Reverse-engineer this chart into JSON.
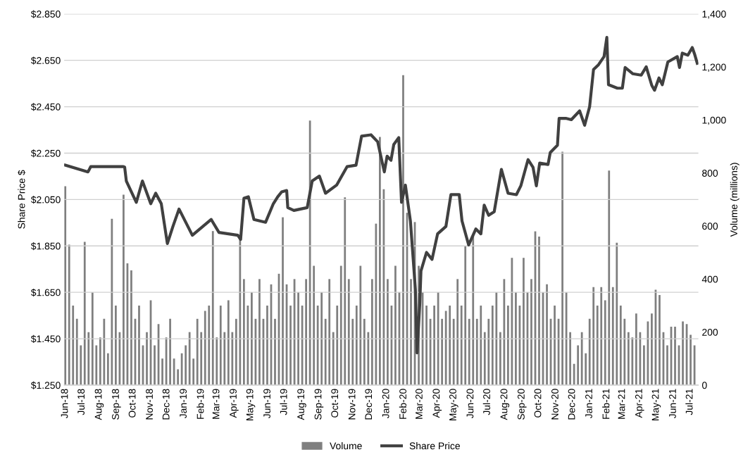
{
  "chart_data": {
    "type": "bar",
    "ylabel": "Share Price $",
    "y2label": "Volume (millions)",
    "xlim": [
      "2018-05-30",
      "2021-07-16"
    ],
    "xticks": [
      {
        "value": "2018-06-01",
        "label": "Jun-18"
      },
      {
        "value": "2018-07-01",
        "label": "Jul-18"
      },
      {
        "value": "2018-08-01",
        "label": "Aug-18"
      },
      {
        "value": "2018-09-01",
        "label": "Sep-18"
      },
      {
        "value": "2018-10-01",
        "label": "Oct-18"
      },
      {
        "value": "2018-11-01",
        "label": "Nov-18"
      },
      {
        "value": "2018-12-01",
        "label": "Dec-18"
      },
      {
        "value": "2019-01-01",
        "label": "Jan-19"
      },
      {
        "value": "2019-02-01",
        "label": "Feb-19"
      },
      {
        "value": "2019-03-01",
        "label": "Mar-19"
      },
      {
        "value": "2019-04-01",
        "label": "Apr-19"
      },
      {
        "value": "2019-05-01",
        "label": "May-19"
      },
      {
        "value": "2019-06-01",
        "label": "Jun-19"
      },
      {
        "value": "2019-07-01",
        "label": "Jul-19"
      },
      {
        "value": "2019-08-01",
        "label": "Aug-19"
      },
      {
        "value": "2019-09-01",
        "label": "Sep-19"
      },
      {
        "value": "2019-10-01",
        "label": "Oct-19"
      },
      {
        "value": "2019-11-01",
        "label": "Nov-19"
      },
      {
        "value": "2019-12-01",
        "label": "Dec-19"
      },
      {
        "value": "2020-01-01",
        "label": "Jan-20"
      },
      {
        "value": "2020-02-01",
        "label": "Feb-20"
      },
      {
        "value": "2020-03-01",
        "label": "Mar-20"
      },
      {
        "value": "2020-04-01",
        "label": "Apr-20"
      },
      {
        "value": "2020-05-01",
        "label": "May-20"
      },
      {
        "value": "2020-06-01",
        "label": "Jun-20"
      },
      {
        "value": "2020-07-01",
        "label": "Jul-20"
      },
      {
        "value": "2020-08-01",
        "label": "Aug-20"
      },
      {
        "value": "2020-09-01",
        "label": "Sep-20"
      },
      {
        "value": "2020-10-01",
        "label": "Oct-20"
      },
      {
        "value": "2020-11-01",
        "label": "Nov-20"
      },
      {
        "value": "2020-12-01",
        "label": "Dec-20"
      },
      {
        "value": "2021-01-01",
        "label": "Jan-21"
      },
      {
        "value": "2021-02-01",
        "label": "Feb-21"
      },
      {
        "value": "2021-03-01",
        "label": "Mar-21"
      },
      {
        "value": "2021-04-01",
        "label": "Apr-21"
      },
      {
        "value": "2021-05-01",
        "label": "May-21"
      },
      {
        "value": "2021-06-01",
        "label": "Jun-21"
      },
      {
        "value": "2021-07-01",
        "label": "Jul-21"
      }
    ],
    "ylim": [
      1.25,
      2.85
    ],
    "yticks": [
      {
        "value": 1.25,
        "label": "$1.250"
      },
      {
        "value": 1.45,
        "label": "$1.450"
      },
      {
        "value": 1.65,
        "label": "$1.650"
      },
      {
        "value": 1.85,
        "label": "$1.850"
      },
      {
        "value": 2.05,
        "label": "$2.050"
      },
      {
        "value": 2.25,
        "label": "$2.250"
      },
      {
        "value": 2.45,
        "label": "$2.450"
      },
      {
        "value": 2.65,
        "label": "$2.650"
      },
      {
        "value": 2.85,
        "label": "$2.850"
      }
    ],
    "y2lim": [
      0,
      1400
    ],
    "y2ticks": [
      0,
      200,
      400,
      600,
      800,
      {
        "value": 1000,
        "label": "1,000"
      },
      {
        "value": 1200,
        "label": "1,200"
      },
      {
        "value": 1400,
        "label": "1,400"
      }
    ],
    "grid": "y",
    "legend": "bottom",
    "series": [
      {
        "name": "Volume",
        "axis": "y2",
        "color": "#7f7f7f",
        "x": [
          "2018-06-01",
          "2018-06-08",
          "2018-06-15",
          "2018-06-22",
          "2018-06-29",
          "2018-07-06",
          "2018-07-13",
          "2018-07-20",
          "2018-07-27",
          "2018-08-03",
          "2018-08-10",
          "2018-08-17",
          "2018-08-24",
          "2018-08-31",
          "2018-09-07",
          "2018-09-14",
          "2018-09-21",
          "2018-09-28",
          "2018-10-05",
          "2018-10-12",
          "2018-10-19",
          "2018-10-26",
          "2018-11-02",
          "2018-11-09",
          "2018-11-16",
          "2018-11-23",
          "2018-11-30",
          "2018-12-07",
          "2018-12-14",
          "2018-12-21",
          "2018-12-28",
          "2019-01-04",
          "2019-01-11",
          "2019-01-18",
          "2019-01-25",
          "2019-02-01",
          "2019-02-08",
          "2019-02-15",
          "2019-02-22",
          "2019-03-01",
          "2019-03-08",
          "2019-03-15",
          "2019-03-22",
          "2019-03-29",
          "2019-04-05",
          "2019-04-12",
          "2019-04-19",
          "2019-04-26",
          "2019-05-03",
          "2019-05-10",
          "2019-05-17",
          "2019-05-24",
          "2019-05-31",
          "2019-06-07",
          "2019-06-14",
          "2019-06-21",
          "2019-06-28",
          "2019-07-05",
          "2019-07-12",
          "2019-07-19",
          "2019-07-26",
          "2019-08-02",
          "2019-08-09",
          "2019-08-16",
          "2019-08-23",
          "2019-08-30",
          "2019-09-06",
          "2019-09-13",
          "2019-09-20",
          "2019-09-27",
          "2019-10-04",
          "2019-10-11",
          "2019-10-18",
          "2019-10-25",
          "2019-11-01",
          "2019-11-08",
          "2019-11-15",
          "2019-11-22",
          "2019-11-29",
          "2019-12-06",
          "2019-12-13",
          "2019-12-20",
          "2019-12-27",
          "2020-01-03",
          "2020-01-10",
          "2020-01-17",
          "2020-01-24",
          "2020-01-31",
          "2020-02-07",
          "2020-02-14",
          "2020-02-21",
          "2020-02-28",
          "2020-03-06",
          "2020-03-13",
          "2020-03-20",
          "2020-03-27",
          "2020-04-03",
          "2020-04-10",
          "2020-04-17",
          "2020-04-24",
          "2020-05-01",
          "2020-05-08",
          "2020-05-15",
          "2020-05-22",
          "2020-05-29",
          "2020-06-05",
          "2020-06-12",
          "2020-06-19",
          "2020-06-26",
          "2020-07-03",
          "2020-07-10",
          "2020-07-17",
          "2020-07-24",
          "2020-07-31",
          "2020-08-07",
          "2020-08-14",
          "2020-08-21",
          "2020-08-28",
          "2020-09-04",
          "2020-09-11",
          "2020-09-18",
          "2020-09-25",
          "2020-10-02",
          "2020-10-09",
          "2020-10-16",
          "2020-10-23",
          "2020-10-30",
          "2020-11-06",
          "2020-11-13",
          "2020-11-20",
          "2020-11-27",
          "2020-12-04",
          "2020-12-11",
          "2020-12-18",
          "2020-12-25",
          "2021-01-01",
          "2021-01-08",
          "2021-01-15",
          "2021-01-22",
          "2021-01-29",
          "2021-02-05",
          "2021-02-12",
          "2021-02-19",
          "2021-02-26",
          "2021-03-05",
          "2021-03-12",
          "2021-03-19",
          "2021-03-26",
          "2021-04-02",
          "2021-04-09",
          "2021-04-16",
          "2021-04-23",
          "2021-04-30",
          "2021-05-07",
          "2021-05-14",
          "2021-05-21",
          "2021-05-28",
          "2021-06-04",
          "2021-06-11",
          "2021-06-18",
          "2021-06-25",
          "2021-07-02",
          "2021-07-09"
        ],
        "values": [
          750,
          530,
          300,
          250,
          150,
          540,
          200,
          350,
          150,
          180,
          250,
          120,
          627,
          300,
          200,
          718,
          459,
          433,
          250,
          300,
          150,
          200,
          320,
          150,
          230,
          100,
          180,
          250,
          100,
          60,
          120,
          150,
          200,
          100,
          250,
          200,
          280,
          300,
          581,
          180,
          300,
          200,
          320,
          200,
          250,
          550,
          400,
          300,
          350,
          250,
          400,
          250,
          300,
          380,
          250,
          420,
          633,
          380,
          300,
          400,
          350,
          300,
          400,
          998,
          450,
          300,
          350,
          250,
          400,
          200,
          300,
          450,
          708,
          400,
          250,
          300,
          450,
          250,
          200,
          400,
          609,
          936,
          739,
          400,
          300,
          450,
          350,
          1169,
          650,
          400,
          615,
          450,
          350,
          300,
          250,
          300,
          350,
          250,
          280,
          300,
          250,
          400,
          300,
          524,
          250,
          563,
          250,
          300,
          200,
          250,
          300,
          350,
          200,
          400,
          300,
          480,
          350,
          300,
          480,
          350,
          400,
          580,
          560,
          350,
          380,
          250,
          300,
          250,
          880,
          350,
          200,
          80,
          150,
          200,
          120,
          250,
          370,
          300,
          370,
          320,
          809,
          370,
          537,
          300,
          250,
          200,
          180,
          270,
          200,
          150,
          240,
          270,
          360,
          340,
          200,
          150,
          220,
          220,
          150,
          240,
          230,
          190,
          150
        ]
      },
      {
        "name": "Share Price",
        "type": "line",
        "color": "#404040",
        "marker": "none",
        "line_style": "solid",
        "x": [
          "2018-06-01",
          "2018-07-12",
          "2018-07-17",
          "2018-09-13",
          "2018-09-16",
          "2018-09-19",
          "2018-10-07",
          "2018-10-18",
          "2018-11-02",
          "2018-11-11",
          "2018-11-21",
          "2018-12-02",
          "2018-12-12",
          "2018-12-23",
          "2019-01-16",
          "2019-02-19",
          "2019-03-05",
          "2019-04-08",
          "2019-04-13",
          "2019-04-19",
          "2019-04-27",
          "2019-05-07",
          "2019-05-28",
          "2019-06-11",
          "2019-06-19",
          "2019-06-26",
          "2019-07-05",
          "2019-07-07",
          "2019-07-18",
          "2019-08-11",
          "2019-08-20",
          "2019-09-02",
          "2019-09-13",
          "2019-10-03",
          "2019-10-22",
          "2019-11-07",
          "2019-11-17",
          "2019-12-04",
          "2019-12-16",
          "2019-12-28",
          "2020-01-02",
          "2020-01-09",
          "2020-01-14",
          "2020-01-23",
          "2020-01-28",
          "2020-02-04",
          "2020-02-13",
          "2020-02-22",
          "2020-02-25",
          "2020-03-01",
          "2020-03-03",
          "2020-03-13",
          "2020-03-23",
          "2020-04-02",
          "2020-04-17",
          "2020-04-26",
          "2020-05-11",
          "2020-05-16",
          "2020-05-28",
          "2020-06-10",
          "2020-06-19",
          "2020-06-25",
          "2020-07-03",
          "2020-07-13",
          "2020-07-26",
          "2020-08-07",
          "2020-08-22",
          "2020-08-30",
          "2020-09-12",
          "2020-09-21",
          "2020-09-27",
          "2020-10-03",
          "2020-10-18",
          "2020-10-22",
          "2020-11-04",
          "2020-11-07",
          "2020-11-19",
          "2020-11-29",
          "2020-12-14",
          "2020-12-23",
          "2021-01-01",
          "2021-01-08",
          "2021-01-17",
          "2021-01-27",
          "2021-02-01",
          "2021-02-04",
          "2021-02-20",
          "2021-03-01",
          "2021-03-06",
          "2021-03-20",
          "2021-04-04",
          "2021-04-13",
          "2021-04-23",
          "2021-04-28",
          "2021-05-06",
          "2021-05-12",
          "2021-05-22",
          "2021-06-08",
          "2021-06-12",
          "2021-06-17",
          "2021-06-27",
          "2021-07-05",
          "2021-07-09",
          "2021-07-14"
        ],
        "values": [
          2.198,
          2.169,
          2.192,
          2.192,
          2.19,
          2.13,
          2.038,
          2.13,
          2.032,
          2.077,
          2.032,
          1.86,
          1.934,
          2.009,
          1.896,
          1.964,
          1.908,
          1.896,
          1.878,
          2.056,
          2.062,
          1.964,
          1.952,
          2.032,
          2.062,
          2.083,
          2.089,
          2.015,
          2.003,
          2.015,
          2.13,
          2.151,
          2.077,
          2.112,
          2.192,
          2.198,
          2.323,
          2.329,
          2.299,
          2.169,
          2.237,
          2.219,
          2.287,
          2.317,
          2.038,
          2.112,
          1.958,
          1.662,
          1.389,
          1.606,
          1.742,
          1.822,
          1.792,
          1.902,
          1.934,
          2.071,
          2.071,
          1.958,
          1.854,
          1.923,
          1.902,
          2.026,
          1.982,
          1.997,
          2.18,
          2.077,
          2.071,
          2.109,
          2.222,
          2.189,
          2.109,
          2.207,
          2.201,
          2.252,
          2.284,
          2.4,
          2.4,
          2.394,
          2.432,
          2.37,
          2.45,
          2.61,
          2.631,
          2.666,
          2.749,
          2.545,
          2.53,
          2.53,
          2.619,
          2.592,
          2.586,
          2.622,
          2.542,
          2.521,
          2.574,
          2.545,
          2.643,
          2.666,
          2.619,
          2.681,
          2.672,
          2.705,
          2.678,
          2.637
        ]
      }
    ]
  }
}
